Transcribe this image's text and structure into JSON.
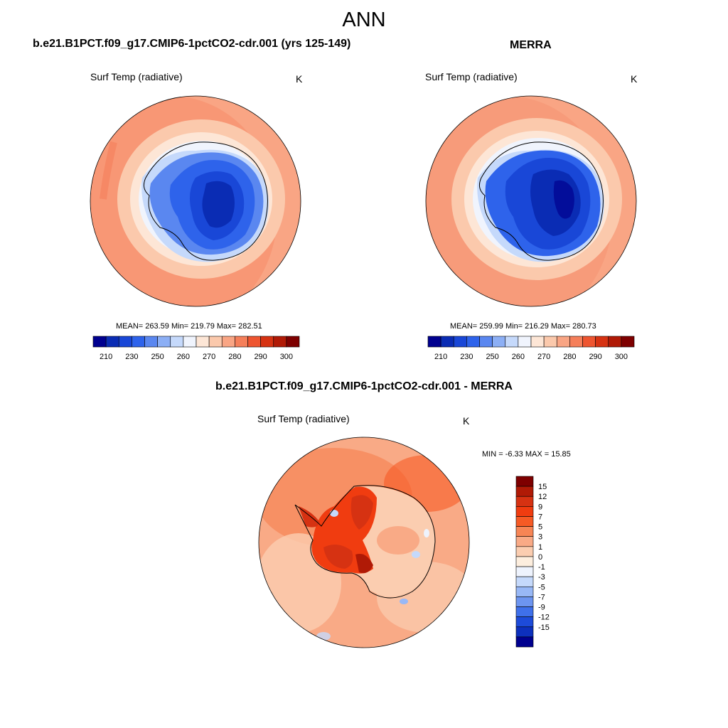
{
  "main_title": "ANN",
  "panels": [
    {
      "title": "b.e21.B1PCT.f09_g17.CMIP6-1pctCO2-cdr.001 (yrs 125-149)",
      "variable": "Surf Temp (radiative)",
      "units": "K",
      "stats": "MEAN= 263.59  Min= 219.79  Max= 282.51"
    },
    {
      "title": "MERRA",
      "variable": "Surf Temp (radiative)",
      "units": "K",
      "stats": "MEAN= 259.99  Min= 216.29  Max= 280.73"
    },
    {
      "title": "b.e21.B1PCT.f09_g17.CMIP6-1pctCO2-cdr.001 - MERRA",
      "variable": "Surf Temp (radiative)",
      "units": "K",
      "stats": "MIN =  -6.33 MAX =  15.85"
    }
  ],
  "abs_colorbar": {
    "labels": [
      "210",
      "230",
      "250",
      "260",
      "270",
      "280",
      "290",
      "300"
    ],
    "colors": [
      "#00008f",
      "#0a2cb4",
      "#1947d7",
      "#2e63eb",
      "#5a87f0",
      "#8caff5",
      "#c5d9fb",
      "#f0f4fd",
      "#fde6d6",
      "#fbc9ac",
      "#f9a584",
      "#f57f5a",
      "#ee5530",
      "#d63212",
      "#b01a06",
      "#7e0000"
    ]
  },
  "diff_colorbar": {
    "labels": [
      "15",
      "12",
      "9",
      "7",
      "5",
      "3",
      "1",
      "0",
      "-1",
      "-3",
      "-5",
      "-7",
      "-9",
      "-12",
      "-15"
    ],
    "colors": [
      "#7e0000",
      "#b01a06",
      "#d63212",
      "#f03c10",
      "#f65a25",
      "#f78555",
      "#f9aa86",
      "#fbcdb0",
      "#fdeede",
      "#eef3fd",
      "#c5d9fb",
      "#98b8f6",
      "#6d95f0",
      "#3f70ea",
      "#1d4bd9",
      "#0d30bd",
      "#00008f"
    ]
  }
}
